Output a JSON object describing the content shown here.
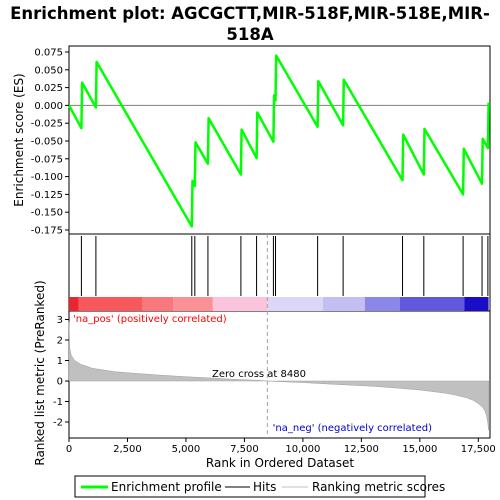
{
  "title_line1": "Enrichment plot: AGCGCTT,MIR-518F,MIR-518E,MIR-",
  "title_line2": "518A",
  "chart_data": [
    {
      "type": "line",
      "panel": "enrichment",
      "ylabel": "Enrichment score (ES)",
      "xlim": [
        0,
        18000
      ],
      "ylim": [
        -0.175,
        0.075
      ],
      "y_ticks": [
        0.075,
        0.05,
        0.025,
        0.0,
        -0.025,
        -0.05,
        -0.075,
        -0.1,
        -0.125,
        -0.15,
        -0.175
      ],
      "y_tick_labels": [
        "0.075",
        "0.050",
        "0.025",
        "0.000",
        "-0.025",
        "-0.050",
        "-0.075",
        "-0.100",
        "-0.125",
        "-0.150",
        "-0.175"
      ],
      "grid": false,
      "series_color": "#00ff00",
      "x": [
        0,
        530,
        560,
        1150,
        1180,
        5250,
        5280,
        5380,
        5410,
        5940,
        5970,
        7350,
        7380,
        8020,
        8050,
        8740,
        8770,
        8830,
        8860,
        10630,
        10660,
        11720,
        11750,
        14260,
        14290,
        15170,
        15200,
        16850,
        16880,
        17660,
        17690,
        17910,
        17940
      ],
      "y": [
        0.0,
        -0.032,
        0.032,
        -0.003,
        0.061,
        -0.17,
        -0.106,
        -0.113,
        -0.052,
        -0.082,
        -0.018,
        -0.097,
        -0.034,
        -0.074,
        -0.01,
        -0.051,
        0.014,
        0.007,
        0.07,
        -0.03,
        0.034,
        -0.028,
        0.036,
        -0.105,
        -0.041,
        -0.097,
        -0.033,
        -0.125,
        -0.061,
        -0.11,
        -0.047,
        -0.06,
        0.004
      ]
    },
    {
      "type": "hits",
      "panel": "hits",
      "x": [
        530,
        1150,
        5250,
        5380,
        5940,
        7350,
        8020,
        8740,
        8830,
        10630,
        11720,
        14260,
        15170,
        16850,
        17660,
        17910
      ],
      "color": "#000000"
    },
    {
      "type": "area",
      "panel": "ranked-metric",
      "xlabel": "Rank in Ordered Dataset",
      "ylabel": "Ranked list metric (PreRanked)",
      "xlim": [
        0,
        18000
      ],
      "ylim": [
        -2.5,
        3.5
      ],
      "x_ticks": [
        0,
        2500,
        5000,
        7500,
        10000,
        12500,
        15000,
        17500
      ],
      "x_tick_labels": [
        "0",
        "2,500",
        "5,000",
        "7,500",
        "10,000",
        "12,500",
        "15,000",
        "17,500"
      ],
      "y_ticks": [
        3,
        2,
        1,
        0,
        -1,
        -2
      ],
      "y_tick_labels": [
        "3",
        "2",
        "1",
        "0",
        "-1",
        "-2"
      ],
      "x": [
        0,
        30,
        100,
        250,
        500,
        1000,
        2000,
        3000,
        4000,
        5000,
        6000,
        7000,
        8000,
        8480,
        9000,
        10000,
        11000,
        12000,
        13000,
        14000,
        15000,
        16000,
        16500,
        17000,
        17300,
        17500,
        17700,
        17800,
        17850,
        17900,
        17940
      ],
      "y": [
        2.9,
        1.6,
        1.25,
        1.0,
        0.82,
        0.62,
        0.45,
        0.36,
        0.28,
        0.21,
        0.15,
        0.09,
        0.04,
        0.0,
        -0.03,
        -0.08,
        -0.14,
        -0.2,
        -0.26,
        -0.34,
        -0.44,
        -0.58,
        -0.68,
        -0.82,
        -0.95,
        -1.1,
        -1.3,
        -1.5,
        -1.7,
        -2.0,
        -2.4
      ],
      "fill_color": "#c0c0c0",
      "zero_cross_label": "Zero cross at 8480",
      "zero_cross": 8480,
      "pos_label": "'na_pos' (positively correlated)",
      "pos_color": "#ff0000",
      "neg_label": "'na_neg' (negatively correlated)",
      "neg_color": "#0000cc"
    }
  ],
  "color_bar": [
    {
      "from": 0,
      "to": 420,
      "color": "#e8262f"
    },
    {
      "from": 420,
      "to": 3150,
      "color": "#f7585c"
    },
    {
      "from": 3150,
      "to": 4450,
      "color": "#f9787b"
    },
    {
      "from": 4450,
      "to": 6150,
      "color": "#fb9095"
    },
    {
      "from": 6150,
      "to": 8480,
      "color": "#fbc4dc"
    },
    {
      "from": 8480,
      "to": 10850,
      "color": "#dcd7f7"
    },
    {
      "from": 10850,
      "to": 12650,
      "color": "#c3bff2"
    },
    {
      "from": 12650,
      "to": 14150,
      "color": "#8b87e8"
    },
    {
      "from": 14150,
      "to": 16900,
      "color": "#6158dd"
    },
    {
      "from": 16900,
      "to": 17940,
      "color": "#1a0dc8"
    }
  ],
  "legend": {
    "profile_label": "Enrichment profile",
    "hits_label": "Hits",
    "metric_label": "Ranking metric scores",
    "profile_color": "#00ff00",
    "hits_color": "#000000",
    "metric_color": "#c0c0c0"
  }
}
